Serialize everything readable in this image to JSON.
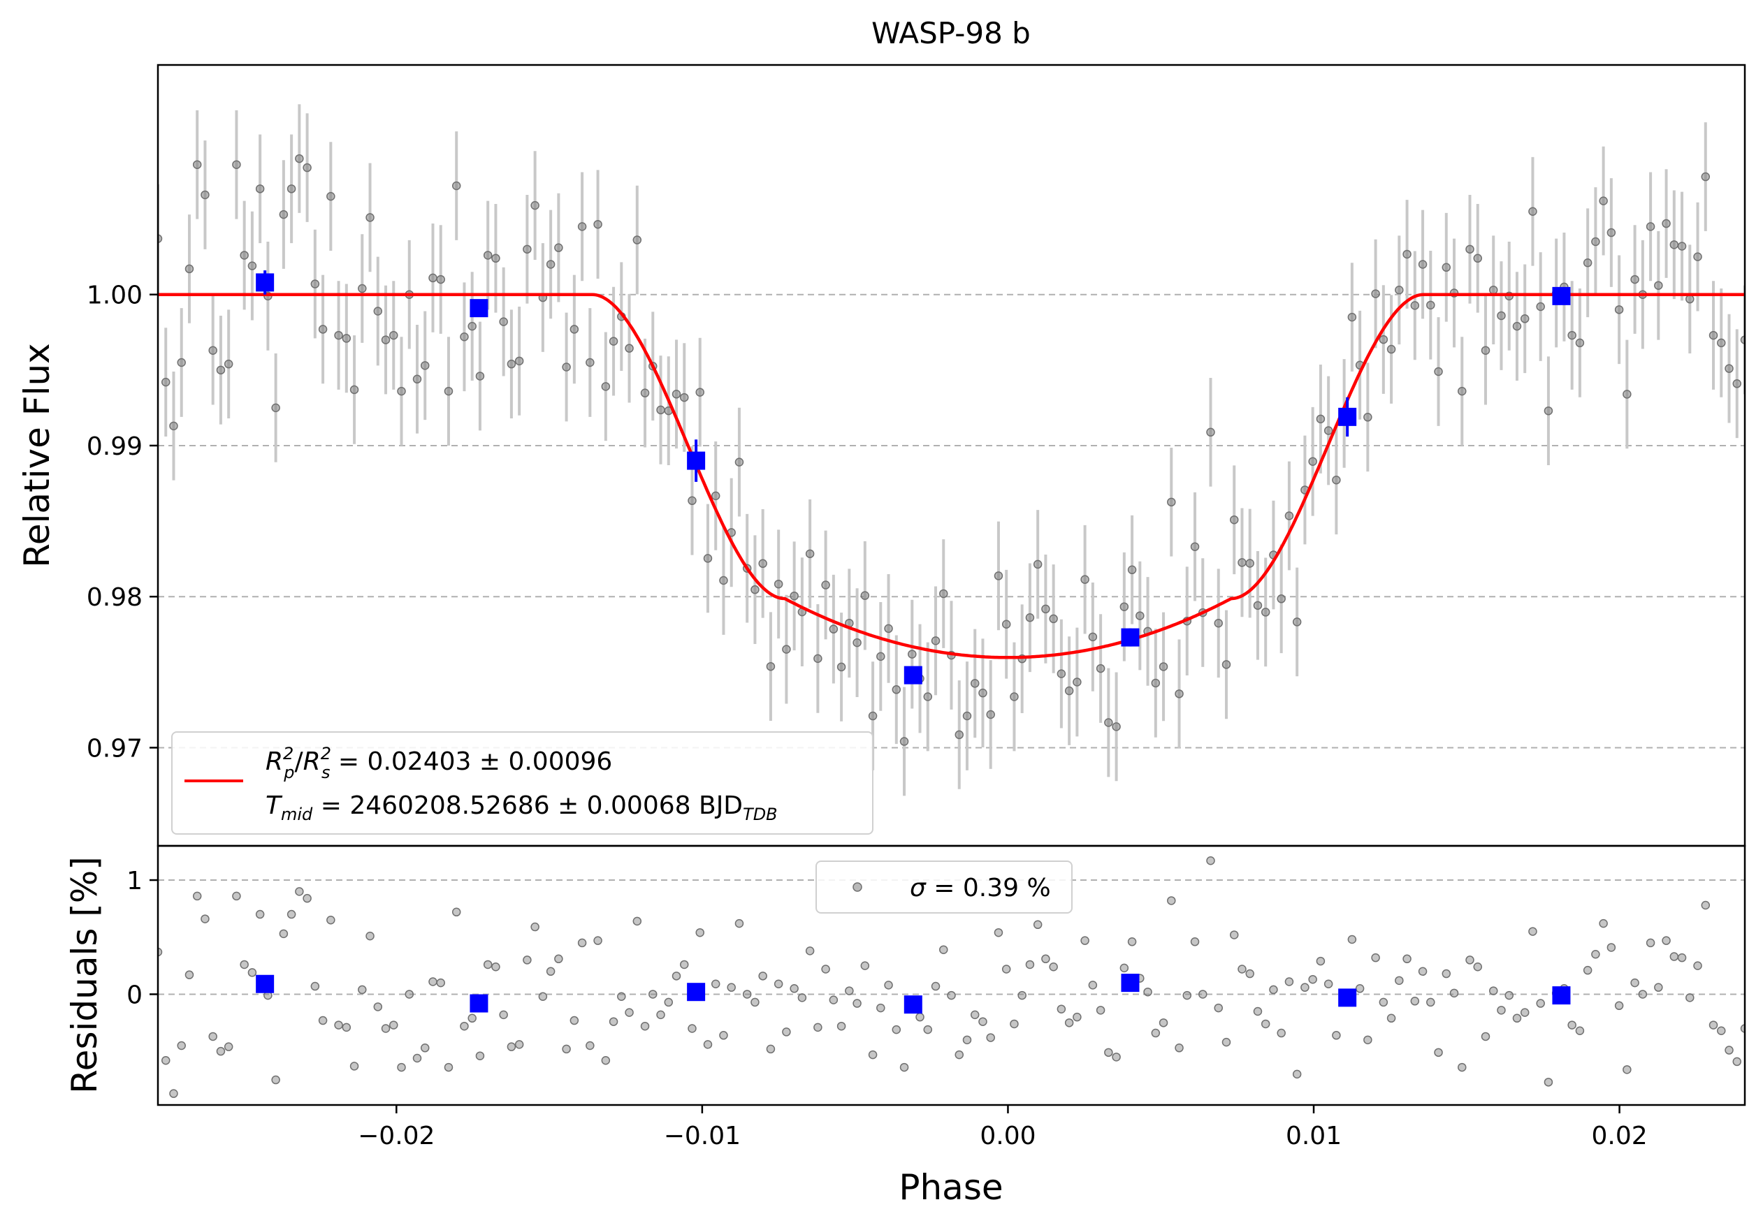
{
  "title": "WASP-98 b",
  "colors": {
    "model": "#ff0000",
    "binned": "#0000ff",
    "raw_points": "#808080",
    "raw_errorbars": "#c8c8c8",
    "grid": "#b0b0b0"
  },
  "chart_data": [
    {
      "panel": "light-curve",
      "type": "scatter",
      "xlabel": "",
      "ylabel": "Relative Flux",
      "xlim": [
        -0.0278,
        0.0241
      ],
      "ylim": [
        0.9635,
        1.0152
      ],
      "yticks": [
        0.97,
        0.98,
        0.99,
        1.0
      ],
      "ytick_labels": [
        "0.97",
        "0.98",
        "0.99",
        "1.00"
      ],
      "grid": "horizontal dashed",
      "legend": {
        "placement": "lower-left",
        "line1": {
          "lhs_sym": "R",
          "lhs_sub1": "p",
          "lhs_sup1": "2",
          "lhs_sep": "/",
          "lhs_sym2": "R",
          "lhs_sub2": "s",
          "lhs_sup2": "2",
          "value": " = 0.02403 ± 0.00096"
        },
        "line2": {
          "lhs_sym": "T",
          "lhs_sub": "mid",
          "value": " = 2460208.52686 ± 0.00068 BJD",
          "unit_sub": "TDB"
        }
      },
      "model": {
        "type": "transit",
        "baseline": 1.0,
        "depth": 0.02403,
        "t14_half": 0.0136,
        "t23_half": 0.0073,
        "limb_curvature": 0.0039
      },
      "binned": [
        {
          "x": -0.0243,
          "y": 1.0008,
          "err": 0.0008
        },
        {
          "x": -0.0173,
          "y": 0.9991,
          "err": 0.0005
        },
        {
          "x": -0.0102,
          "y": 0.989,
          "err": 0.0014
        },
        {
          "x": -0.0031,
          "y": 0.9748,
          "err": 0.0005
        },
        {
          "x": 0.004,
          "y": 0.9773,
          "err": 0.0006
        },
        {
          "x": 0.0111,
          "y": 0.9919,
          "err": 0.0013
        },
        {
          "x": 0.0181,
          "y": 0.9999,
          "err": 0.0004
        }
      ],
      "raw_errorbar": 0.0036
    },
    {
      "panel": "residuals",
      "type": "scatter",
      "xlabel": "Phase",
      "ylabel": "Residuals [%]",
      "xlim": [
        -0.0278,
        0.0241
      ],
      "ylim": [
        -0.97,
        1.3
      ],
      "xticks": [
        -0.02,
        -0.01,
        0.0,
        0.01,
        0.02
      ],
      "xtick_labels": [
        "−0.02",
        "−0.01",
        "0.00",
        "0.01",
        "0.02"
      ],
      "yticks": [
        0,
        1
      ],
      "ytick_labels": [
        "0",
        "1"
      ],
      "grid": "horizontal dashed",
      "legend": {
        "placement": "upper-center",
        "sym": "σ",
        "text": " = 0.39 %"
      },
      "binned": [
        {
          "x": -0.0243,
          "y": 0.09
        },
        {
          "x": -0.0173,
          "y": -0.08
        },
        {
          "x": -0.0102,
          "y": 0.02
        },
        {
          "x": -0.0031,
          "y": -0.09
        },
        {
          "x": 0.004,
          "y": 0.1
        },
        {
          "x": 0.0111,
          "y": -0.03
        },
        {
          "x": 0.0181,
          "y": -0.01
        }
      ],
      "raw_residuals": [
        0.37,
        -0.58,
        -0.87,
        -0.45,
        0.17,
        0.86,
        0.66,
        -0.37,
        -0.5,
        -0.46,
        0.86,
        0.26,
        0.19,
        0.7,
        -0.01,
        -0.75,
        0.53,
        0.7,
        0.9,
        0.84,
        0.07,
        -0.23,
        0.65,
        -0.27,
        -0.29,
        -0.63,
        0.04,
        0.51,
        -0.11,
        -0.3,
        -0.27,
        -0.64,
        0.0,
        -0.56,
        -0.47,
        0.11,
        0.1,
        -0.64,
        0.72,
        -0.28,
        -0.21,
        -0.54,
        0.26,
        0.24,
        -0.18,
        -0.46,
        -0.44,
        0.3,
        0.59,
        -0.02,
        0.2,
        0.31,
        -0.48,
        -0.23,
        0.45,
        -0.45,
        0.47,
        -0.58,
        -0.24,
        -0.02,
        -0.16,
        0.64,
        -0.28,
        0.0,
        -0.18,
        -0.07,
        0.16,
        0.26,
        -0.3,
        0.54,
        -0.44,
        0.09,
        -0.36,
        0.06,
        0.62,
        0.0,
        -0.07,
        0.16,
        -0.48,
        0.09,
        -0.33,
        0.05,
        -0.03,
        0.38,
        -0.29,
        0.22,
        -0.05,
        -0.28,
        0.03,
        -0.08,
        0.25,
        -0.53,
        -0.12,
        0.08,
        -0.31,
        -0.64,
        -0.05,
        -0.2,
        -0.31,
        0.07,
        0.39,
        -0.01,
        -0.53,
        -0.4,
        -0.18,
        -0.24,
        -0.38,
        0.54,
        0.22,
        -0.26,
        -0.01,
        0.26,
        0.61,
        0.31,
        0.24,
        -0.13,
        -0.25,
        -0.2,
        0.47,
        0.08,
        -0.14,
        -0.51,
        -0.55,
        0.23,
        0.46,
        0.14,
        0.02,
        -0.34,
        -0.25,
        0.82,
        -0.47,
        -0.01,
        0.46,
        0.0,
        1.17,
        -0.12,
        -0.42,
        0.52,
        0.22,
        0.18,
        -0.15,
        -0.26,
        0.04,
        -0.34,
        0.11,
        -0.7,
        0.06,
        0.13,
        0.29,
        0.09,
        -0.36,
        -0.04,
        0.48,
        0.05,
        -0.4,
        0.32,
        -0.07,
        -0.21,
        0.12,
        0.31,
        -0.06,
        0.2,
        -0.07,
        -0.51,
        0.18,
        0.01,
        -0.64,
        0.3,
        0.24,
        -0.37,
        0.03,
        -0.14,
        -0.01,
        -0.21,
        -0.16,
        0.55,
        -0.08,
        -0.77,
        0.01,
        0.05,
        -0.27,
        -0.32,
        0.21,
        0.35,
        0.62,
        0.41,
        -0.1,
        -0.66,
        0.1,
        0.0,
        0.45,
        0.06,
        0.47,
        0.33,
        0.32,
        -0.03,
        0.25,
        0.78,
        -0.27,
        -0.32,
        -0.49,
        -0.59,
        -0.3
      ]
    }
  ]
}
